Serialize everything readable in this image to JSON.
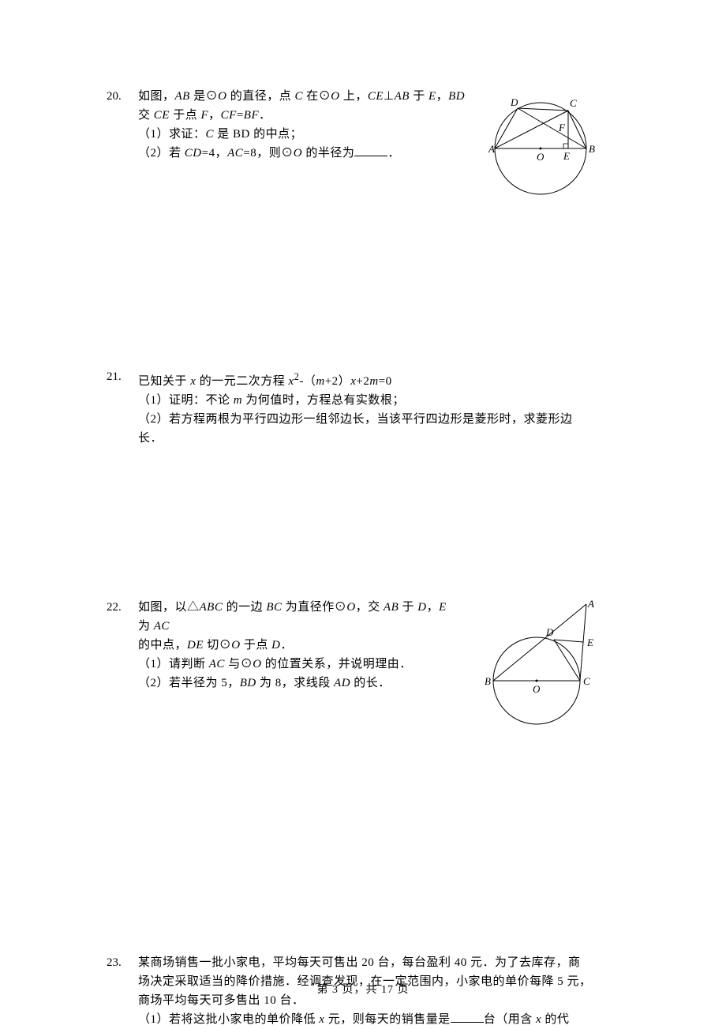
{
  "problems": {
    "p20": {
      "number": "20.",
      "lines": [
        "如图，<span class='italic'>AB</span> 是⊙<span class='italic'>O</span> 的直径，点 <span class='italic'>C</span> 在⊙<span class='italic'>O</span> 上，<span class='italic'>CE</span>⊥<span class='italic'>AB</span> 于 <span class='italic'>E</span>，<span class='italic'>BD</span>",
        "交 <span class='italic'>CE</span> 于点 <span class='italic'>F</span>，<span class='italic'>CF</span>=<span class='italic'>BF</span>．",
        "（1）求证：<span class='italic'>C</span> 是 BD 的中点；",
        "（2）若 <span class='italic'>CD</span>=4，<span class='italic'>AC</span>=8，则⊙<span class='italic'>O</span> 的半径为<span class='blank'></span>．"
      ],
      "figure": {
        "labels": {
          "A": "A",
          "B": "B",
          "C": "C",
          "D": "D",
          "E": "E",
          "F": "F",
          "O": "O"
        },
        "stroke": "#000000",
        "fill": "#ffffff"
      }
    },
    "p21": {
      "number": "21.",
      "lines": [
        "已知关于 <span class='italic'>x</span> 的一元二次方程 <span class='italic'>x</span><sup>2</sup>-（<span class='italic'>m</span>+2）<span class='italic'>x</span>+2<span class='italic'>m</span>=0",
        "（1）证明：不论 <span class='italic'>m</span> 为何值时，方程总有实数根；",
        "（2）若方程两根为平行四边形一组邻边长，当该平行四边形是菱形时，求菱形边",
        "长．"
      ]
    },
    "p22": {
      "number": "22.",
      "lines": [
        "如图，以△<span class='italic'>ABC</span> 的一边 <span class='italic'>BC</span> 为直径作⊙<span class='italic'>O</span>，交 <span class='italic'>AB</span> 于 <span class='italic'>D</span>，<span class='italic'>E</span> 为 <span class='italic'>AC</span>",
        "的中点，<span class='italic'>DE</span> 切⊙<span class='italic'>O</span> 于点 <span class='italic'>D</span>．",
        "（1）请判断 <span class='italic'>AC</span> 与⊙<span class='italic'>O</span> 的位置关系，并说明理由．",
        "（2）若半径为 5，<span class='italic'>BD</span> 为 8，求线段 <span class='italic'>AD</span> 的长．"
      ],
      "figure": {
        "labels": {
          "A": "A",
          "B": "B",
          "C": "C",
          "D": "D",
          "E": "E",
          "O": "O"
        },
        "stroke": "#000000",
        "fill": "#ffffff"
      }
    },
    "p23": {
      "number": "23.",
      "lines": [
        "某商场销售一批小家电，平均每天可售出 20 台，每台盈利 40 元．为了去库存，商",
        "场决定采取适当的降价措施．经调查发现，在一定范围内，小家电的单价每降 5 元，",
        "商场平均每天可多售出 10 台．",
        "（1）若将这批小家电的单价降低 <span class='italic'>x</span> 元，则每天的销售量是<span class='blank'></span>台（用含 <span class='italic'>x</span> 的代"
      ]
    }
  },
  "footer": {
    "text": "第 3 页，共 17 页"
  }
}
